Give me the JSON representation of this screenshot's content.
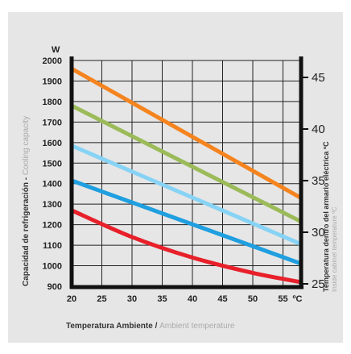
{
  "chart_data": {
    "type": "line",
    "y_unit": "W",
    "x_unit": "ºC",
    "x_ticks": [
      20,
      25,
      30,
      35,
      40,
      45,
      50,
      55
    ],
    "xlim": [
      20,
      58
    ],
    "y_ticks": [
      900,
      1000,
      1100,
      1200,
      1300,
      1400,
      1500,
      1600,
      1700,
      1800,
      1900,
      2000
    ],
    "ylim": [
      900,
      2000
    ],
    "y2_ticks": [
      25,
      30,
      35,
      40,
      45
    ],
    "ylabel_bold": "Capacidad de refrigeración - ",
    "ylabel_light": "Cooling capacity",
    "xlabel_bold": "Temperatura Ambiente / ",
    "xlabel_light": "Ambient temperature",
    "y2label_bold": "Temperatura dentro del armario eléctrica ºC",
    "y2label_light": "Inside cabinet temperature ºC",
    "grid": true,
    "series": [
      {
        "color": "#f5841f",
        "points": [
          [
            20,
            1960
          ],
          [
            58,
            1330
          ]
        ]
      },
      {
        "color": "#9bbb59",
        "points": [
          [
            20,
            1780
          ],
          [
            58,
            1215
          ]
        ]
      },
      {
        "color": "#87d3f5",
        "points": [
          [
            20,
            1585
          ],
          [
            58,
            1105
          ]
        ]
      },
      {
        "color": "#1f9fe0",
        "points": [
          [
            20,
            1415
          ],
          [
            58,
            1010
          ]
        ]
      },
      {
        "color": "#e8202a",
        "points": [
          [
            20,
            1270
          ],
          [
            30,
            1140
          ],
          [
            40,
            1040
          ],
          [
            50,
            965
          ],
          [
            58,
            920
          ]
        ]
      }
    ]
  }
}
